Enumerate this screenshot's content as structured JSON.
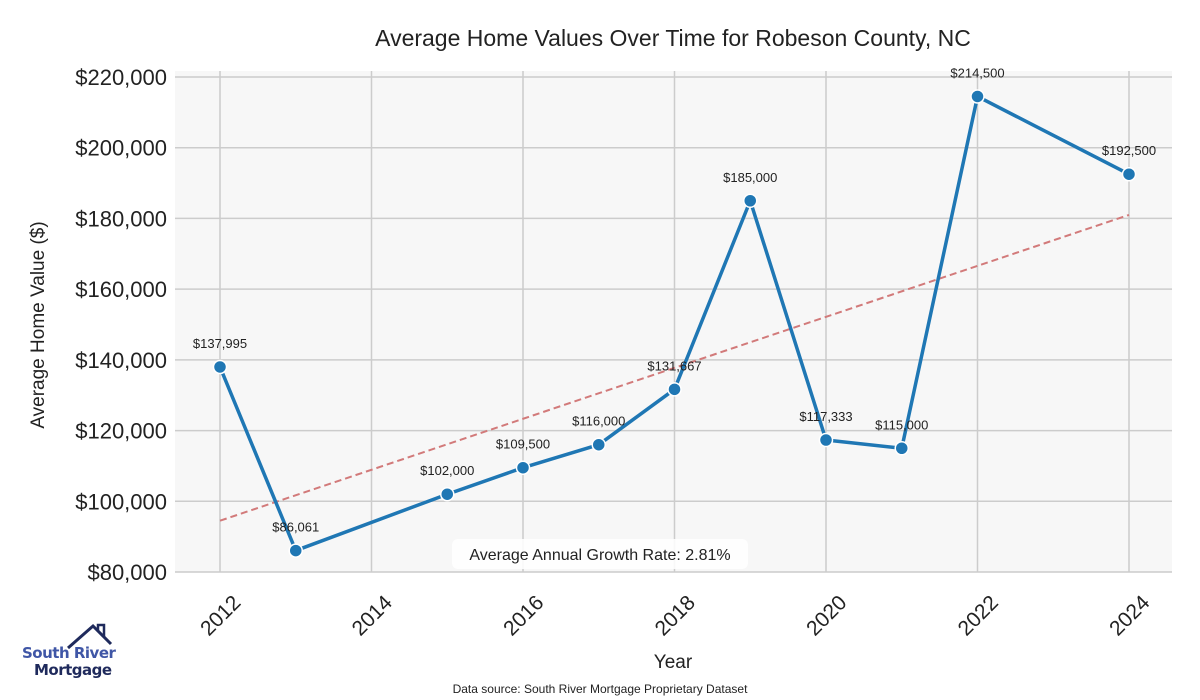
{
  "chart_data": {
    "type": "line",
    "title": "Average Home Values Over Time for Robeson County, NC",
    "xlabel": "Year",
    "ylabel": "Average Home Value ($)",
    "x": [
      2012,
      2013,
      2015,
      2016,
      2017,
      2018,
      2019,
      2020,
      2021,
      2022,
      2024
    ],
    "values": [
      137995,
      86061,
      102000,
      109500,
      116000,
      131667,
      185000,
      117333,
      115000,
      214500,
      192500
    ],
    "data_labels": [
      "$137,995",
      "$86,061",
      "$102,000",
      "$109,500",
      "$116,000",
      "$131,667",
      "$185,000",
      "$117,333",
      "$115,000",
      "$214,500",
      "$192,500"
    ],
    "trendline": {
      "x": [
        2012,
        2024
      ],
      "y": [
        94500,
        181000
      ],
      "style": "dashed",
      "color": "#d27a7a"
    },
    "xticks": [
      2012,
      2014,
      2016,
      2018,
      2020,
      2022,
      2024
    ],
    "yticks": [
      80000,
      100000,
      120000,
      140000,
      160000,
      180000,
      200000,
      220000
    ],
    "ytick_labels": [
      "$80,000",
      "$100,000",
      "$120,000",
      "$140,000",
      "$160,000",
      "$180,000",
      "$200,000",
      "$220,000"
    ],
    "xlim": [
      2011.4,
      2024.6
    ],
    "ylim": [
      80000,
      220000
    ],
    "grid": true,
    "line_color": "#1f77b4",
    "annotation": "Average Annual Growth Rate: 2.81%",
    "source": "Data source: South River Mortgage Proprietary Dataset"
  },
  "logo": {
    "line1": "South River",
    "line2": "Mortgage"
  }
}
